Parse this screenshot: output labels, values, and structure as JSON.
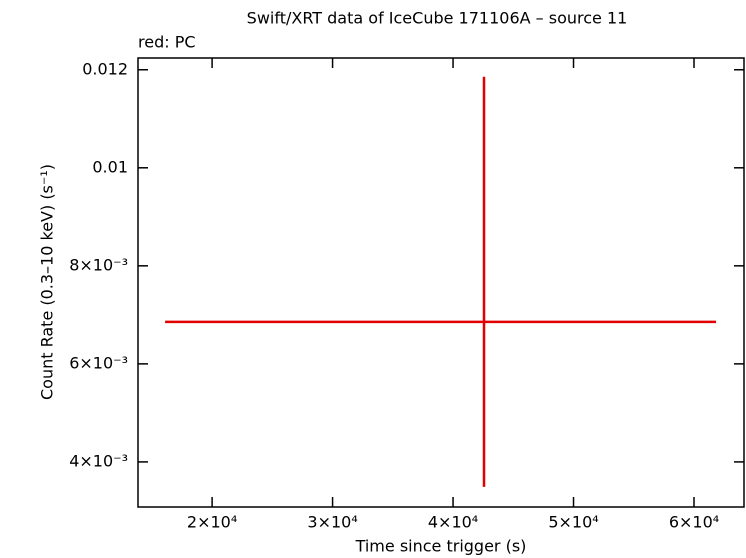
{
  "chart_data": {
    "type": "errorbar",
    "title": "Swift/XRT data of IceCube 171106A – source 11",
    "subtitle": "red: PC",
    "x_label": "Time since trigger (s)",
    "y_label": "Count Rate (0.3–10 keV) (s⁻¹)",
    "series": [
      {
        "color": "#e00000",
        "x": [
          42570
        ],
        "values": [
          0.006857
        ],
        "xerr_minus": [
          26470
        ],
        "xerr_plus": [
          19260
        ],
        "yerr_minus": [
          0.003367
        ],
        "yerr_plus": [
          0.005
        ]
      }
    ],
    "xlim": [
      13850,
      64150
    ],
    "xticks": [
      {
        "value": 20000,
        "label": "2×10⁴"
      },
      {
        "value": 30000,
        "label": "3×10⁴"
      },
      {
        "value": 40000,
        "label": "4×10⁴"
      },
      {
        "value": 50000,
        "label": "5×10⁴"
      },
      {
        "value": 60000,
        "label": "6×10⁴"
      }
    ],
    "ylim": [
      0.00308,
      0.01224
    ],
    "yticks": [
      {
        "value": 0.004,
        "label": "4×10⁻³"
      },
      {
        "value": 0.006,
        "label": "6×10⁻³"
      },
      {
        "value": 0.008,
        "label": "8×10⁻³"
      },
      0.01,
      0.012
    ],
    "grid": false
  }
}
